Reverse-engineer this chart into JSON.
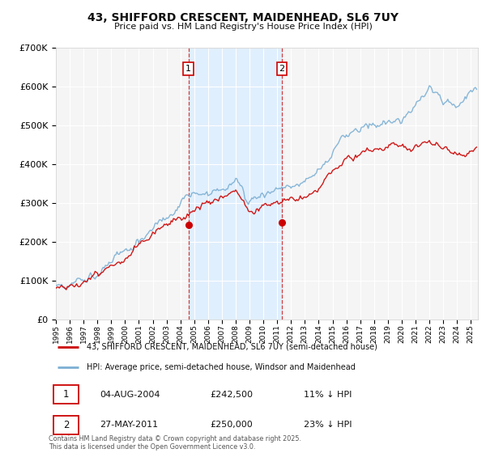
{
  "title": "43, SHIFFORD CRESCENT, MAIDENHEAD, SL6 7UY",
  "subtitle": "Price paid vs. HM Land Registry's House Price Index (HPI)",
  "red_label": "43, SHIFFORD CRESCENT, MAIDENHEAD, SL6 7UY (semi-detached house)",
  "blue_label": "HPI: Average price, semi-detached house, Windsor and Maidenhead",
  "sale1_date": "04-AUG-2004",
  "sale1_price": 242500,
  "sale1_note": "11% ↓ HPI",
  "sale2_date": "27-MAY-2011",
  "sale2_price": 250000,
  "sale2_note": "23% ↓ HPI",
  "footer": "Contains HM Land Registry data © Crown copyright and database right 2025.\nThis data is licensed under the Open Government Licence v3.0.",
  "ylim": [
    0,
    700000
  ],
  "yticks": [
    0,
    100000,
    200000,
    300000,
    400000,
    500000,
    600000,
    700000
  ],
  "background_color": "#ffffff",
  "plot_bg_color": "#f5f5f5",
  "grid_color": "#ffffff",
  "red_color": "#cc0000",
  "blue_color": "#7bafd4",
  "shade_color": "#ddeeff",
  "vline_color": "#cc0000",
  "box_color": "#ffffff",
  "box_edge": "#cc0000",
  "sale1_x": 2004.583,
  "sale2_x": 2011.333,
  "xmin": 1995,
  "xmax": 2025.5
}
